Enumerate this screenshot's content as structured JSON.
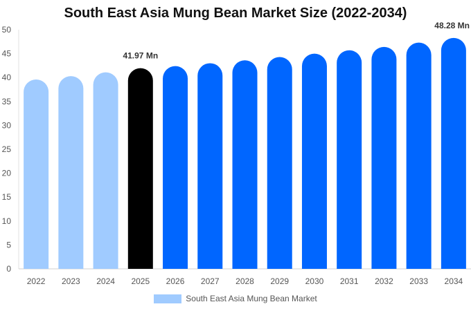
{
  "chart_data": {
    "type": "bar",
    "title": "South East Asia Mung Bean Market Size (2022-2034)",
    "xlabel": "",
    "ylabel": "",
    "ylim": [
      0,
      50
    ],
    "yticks": [
      "0",
      "5",
      "10",
      "15",
      "20",
      "25",
      "30",
      "35",
      "40",
      "45",
      "50"
    ],
    "grid": false,
    "legend_position": "bottom",
    "categories": [
      "2022",
      "2023",
      "2024",
      "2025",
      "2026",
      "2027",
      "2028",
      "2029",
      "2030",
      "2031",
      "2032",
      "2033",
      "2034"
    ],
    "series": [
      {
        "name": "South East Asia Mung Bean Market",
        "values": [
          39.6,
          40.3,
          41.1,
          41.97,
          42.4,
          43.0,
          43.6,
          44.3,
          45.0,
          45.7,
          46.4,
          47.3,
          48.28
        ]
      }
    ],
    "bar_colors": [
      "#a0cbff",
      "#a0cbff",
      "#a0cbff",
      "#000000",
      "#0066ff",
      "#0066ff",
      "#0066ff",
      "#0066ff",
      "#0066ff",
      "#0066ff",
      "#0066ff",
      "#0066ff",
      "#0066ff"
    ],
    "data_labels": [
      {
        "category": "2025",
        "text": "41.97 Mn"
      },
      {
        "category": "2034",
        "text": "48.28 Mn"
      }
    ],
    "legend_color": "#a0cbff"
  }
}
